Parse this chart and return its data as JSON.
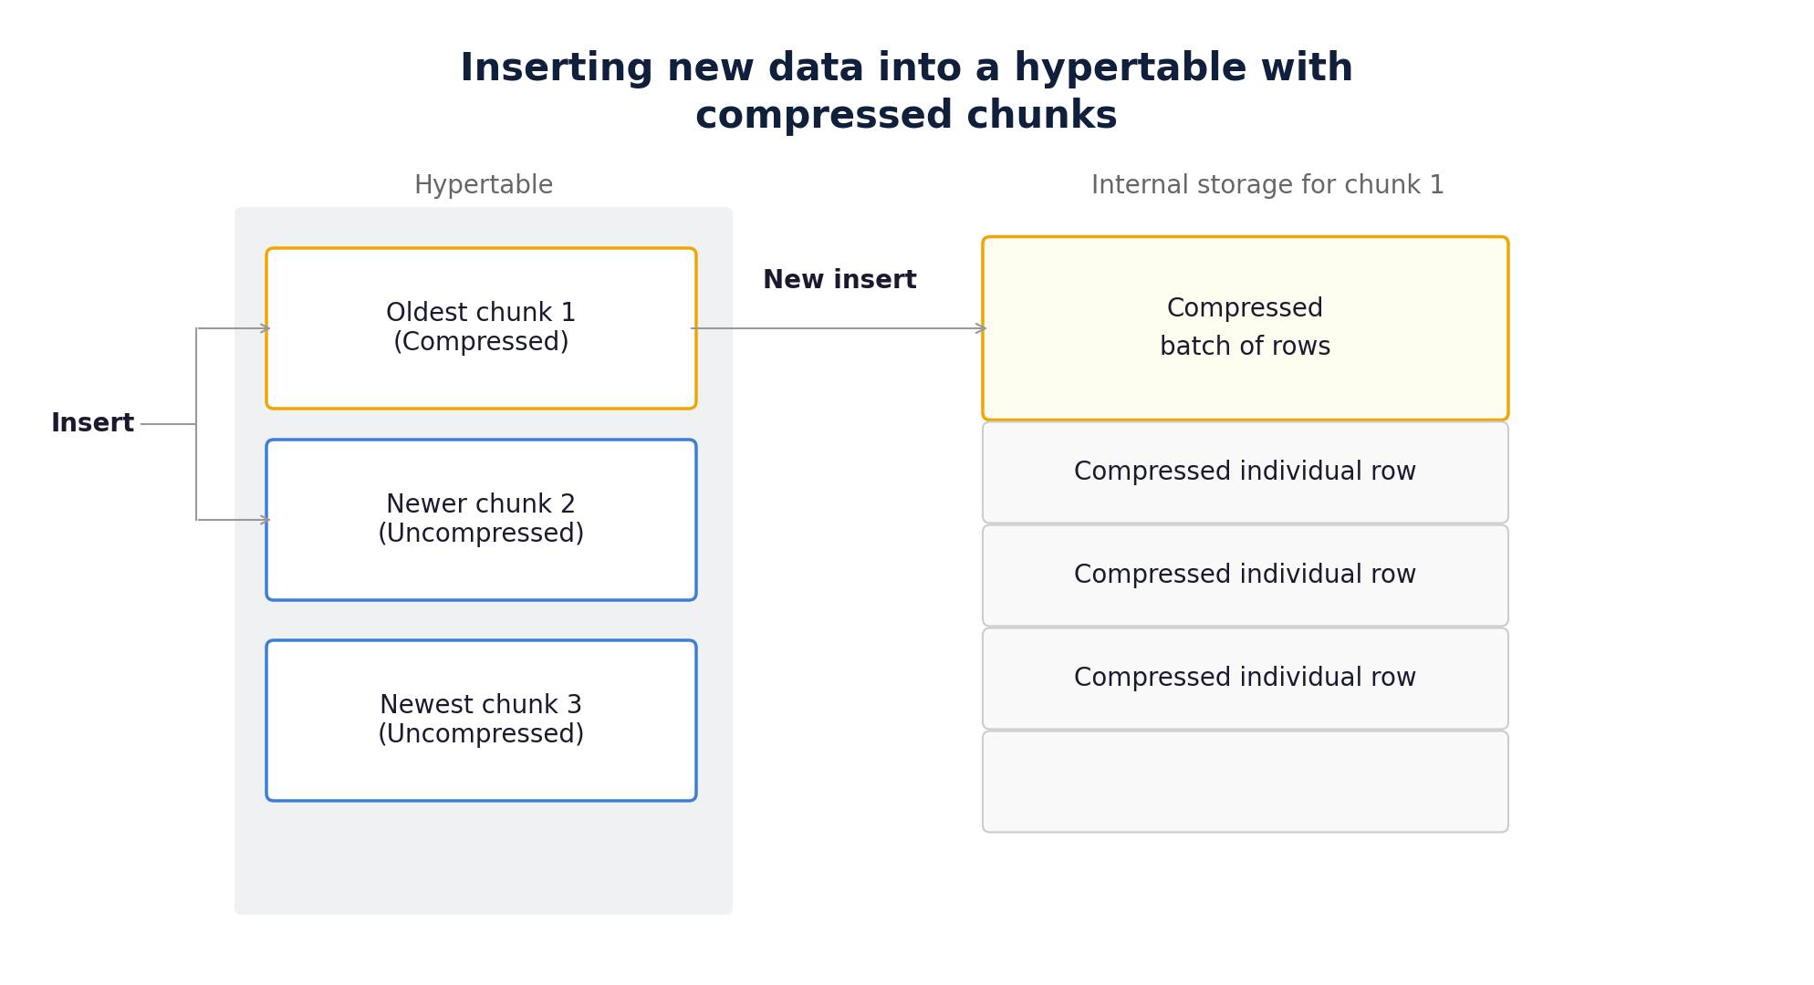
{
  "title": "Inserting new data into a hypertable with\ncompressed chunks",
  "title_color": "#0f1f3c",
  "bg_color": "#ffffff",
  "hypertable_label": "Hypertable",
  "internal_label": "Internal storage for chunk 1",
  "label_color": "#666666",
  "insert_label": "Insert",
  "new_insert_label": "New insert",
  "hypertable_bg": "#f0f1f3",
  "chunks": [
    {
      "text": "Oldest chunk 1\n(Compressed)",
      "border_color": "#f0a500",
      "border_width": 2.5,
      "bg": "#ffffff"
    },
    {
      "text": "Newer chunk 2\n(Uncompressed)",
      "border_color": "#3a7fd5",
      "border_width": 2.5,
      "bg": "#ffffff"
    },
    {
      "text": "Newest chunk 3\n(Uncompressed)",
      "border_color": "#3a7fd5",
      "border_width": 2.5,
      "bg": "#ffffff"
    }
  ],
  "storage_boxes": [
    {
      "text": "Compressed\nbatch of rows",
      "border_color": "#f0a500",
      "border_width": 2.5,
      "bg": "#fffdf0"
    },
    {
      "text": "Compressed individual row",
      "border_color": "#cccccc",
      "border_width": 1.5,
      "bg": "#f9f9f9"
    },
    {
      "text": "Compressed individual row",
      "border_color": "#cccccc",
      "border_width": 1.5,
      "bg": "#f9f9f9"
    },
    {
      "text": "Compressed individual row",
      "border_color": "#cccccc",
      "border_width": 1.5,
      "bg": "#f9f9f9"
    },
    {
      "text": "",
      "border_color": "#cccccc",
      "border_width": 1.5,
      "bg": "#f9f9f9"
    }
  ],
  "arrow_color": "#999999",
  "text_color": "#1a1a2e",
  "new_insert_color": "#1a1a2e"
}
